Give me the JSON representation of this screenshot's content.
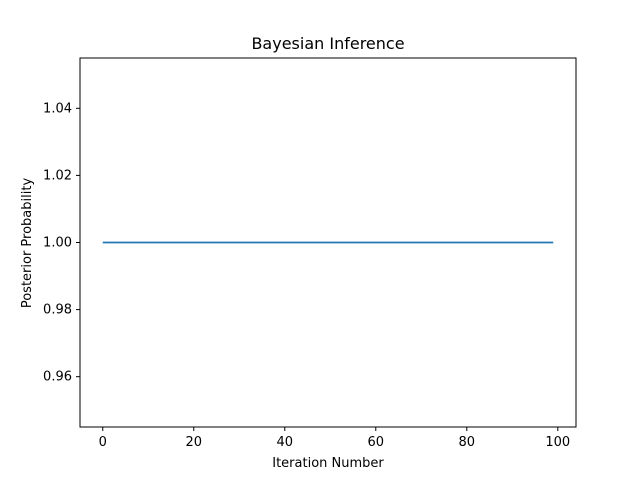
{
  "chart_data": {
    "type": "line",
    "title": "Bayesian Inference",
    "xlabel": "Iteration Number",
    "ylabel": "Posterior Probability",
    "xlim": [
      -5,
      104
    ],
    "ylim": [
      0.945,
      1.055
    ],
    "xticks": [
      0,
      20,
      40,
      60,
      80,
      100
    ],
    "xtick_labels": [
      "0",
      "20",
      "40",
      "60",
      "80",
      "100"
    ],
    "yticks": [
      0.96,
      0.98,
      1.0,
      1.02,
      1.04
    ],
    "ytick_labels": [
      "0.96",
      "0.98",
      "1.00",
      "1.02",
      "1.04"
    ],
    "grid": false,
    "series": [
      {
        "color": "#1f77b4",
        "x": [
          0,
          99
        ],
        "y": [
          1.0,
          1.0
        ]
      }
    ]
  }
}
